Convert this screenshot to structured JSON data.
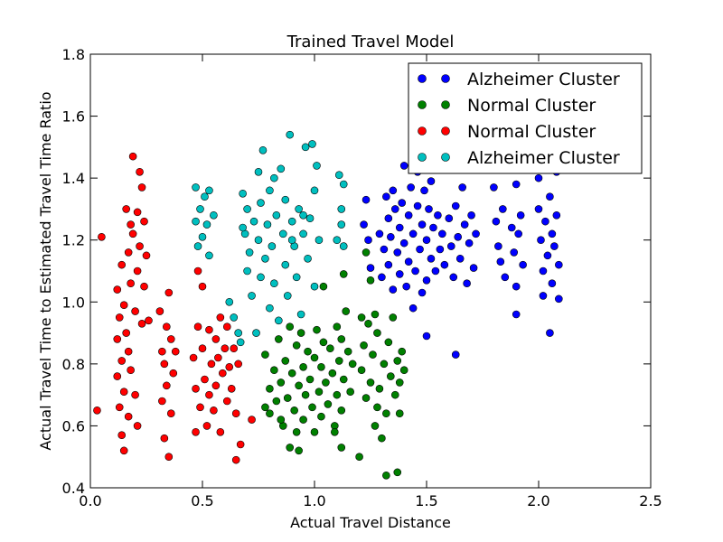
{
  "chart_data": {
    "type": "scatter",
    "title": "Trained Travel Model",
    "xlabel": "Actual Travel Distance",
    "ylabel": "Actual Travel Time to Estimated Travel Time Ratio",
    "xlim": [
      0.0,
      2.5
    ],
    "ylim": [
      0.4,
      1.8
    ],
    "xticks": [
      "0.0",
      "0.5",
      "1.0",
      "1.5",
      "2.0",
      "2.5"
    ],
    "yticks": [
      "0.4",
      "0.6",
      "0.8",
      "1.0",
      "1.2",
      "1.4",
      "1.6",
      "1.8"
    ],
    "grid": false,
    "legend_position": "top-right",
    "series": [
      {
        "name": "Alzheimer Cluster",
        "color": "#0000ff",
        "points": [
          [
            1.22,
            1.25
          ],
          [
            1.23,
            1.33
          ],
          [
            1.24,
            1.2
          ],
          [
            1.25,
            1.11
          ],
          [
            1.29,
            1.22
          ],
          [
            1.3,
            1.08
          ],
          [
            1.31,
            1.17
          ],
          [
            1.32,
            1.34
          ],
          [
            1.33,
            1.27
          ],
          [
            1.33,
            1.12
          ],
          [
            1.34,
            1.21
          ],
          [
            1.35,
            1.36
          ],
          [
            1.35,
            1.04
          ],
          [
            1.36,
            1.3
          ],
          [
            1.37,
            1.16
          ],
          [
            1.38,
            1.24
          ],
          [
            1.38,
            1.09
          ],
          [
            1.39,
            1.32
          ],
          [
            1.4,
            1.44
          ],
          [
            1.4,
            1.19
          ],
          [
            1.41,
            1.05
          ],
          [
            1.42,
            1.28
          ],
          [
            1.42,
            1.13
          ],
          [
            1.43,
            1.37
          ],
          [
            1.44,
            1.22
          ],
          [
            1.44,
            0.98
          ],
          [
            1.45,
            1.1
          ],
          [
            1.46,
            1.42
          ],
          [
            1.46,
            1.31
          ],
          [
            1.47,
            1.17
          ],
          [
            1.48,
            1.25
          ],
          [
            1.48,
            1.03
          ],
          [
            1.49,
            1.36
          ],
          [
            1.5,
            1.2
          ],
          [
            1.5,
            1.07
          ],
          [
            1.51,
            1.3
          ],
          [
            1.52,
            1.14
          ],
          [
            1.52,
            1.39
          ],
          [
            1.53,
            1.24
          ],
          [
            1.54,
            1.1
          ],
          [
            1.55,
            1.47
          ],
          [
            1.55,
            1.28
          ],
          [
            1.56,
            1.17
          ],
          [
            1.57,
            1.22
          ],
          [
            1.58,
            1.12
          ],
          [
            1.6,
            1.27
          ],
          [
            1.61,
            1.18
          ],
          [
            1.62,
            1.08
          ],
          [
            1.63,
            1.31
          ],
          [
            1.64,
            1.21
          ],
          [
            1.65,
            1.14
          ],
          [
            1.66,
            1.37
          ],
          [
            1.67,
            1.25
          ],
          [
            1.68,
            1.06
          ],
          [
            1.69,
            1.19
          ],
          [
            1.7,
            1.28
          ],
          [
            1.71,
            1.11
          ],
          [
            1.72,
            1.22
          ],
          [
            1.5,
            0.89
          ],
          [
            1.63,
            0.83
          ],
          [
            1.8,
            1.37
          ],
          [
            1.81,
            1.26
          ],
          [
            1.82,
            1.18
          ],
          [
            1.83,
            1.13
          ],
          [
            1.84,
            1.3
          ],
          [
            1.85,
            1.08
          ],
          [
            1.88,
            1.24
          ],
          [
            1.89,
            1.16
          ],
          [
            1.9,
            1.05
          ],
          [
            1.9,
            1.38
          ],
          [
            1.91,
            1.22
          ],
          [
            1.92,
            1.28
          ],
          [
            1.93,
            1.12
          ],
          [
            1.9,
            0.96
          ],
          [
            2.0,
            1.4
          ],
          [
            2.0,
            1.3
          ],
          [
            2.01,
            1.2
          ],
          [
            2.02,
            1.1
          ],
          [
            2.02,
            1.02
          ],
          [
            2.03,
            1.26
          ],
          [
            2.04,
            1.15
          ],
          [
            2.05,
            1.34
          ],
          [
            2.06,
            1.22
          ],
          [
            2.06,
            1.06
          ],
          [
            2.07,
            1.18
          ],
          [
            2.08,
            1.42
          ],
          [
            2.08,
            1.28
          ],
          [
            2.09,
            1.12
          ],
          [
            2.05,
            0.9
          ],
          [
            2.09,
            1.01
          ]
        ]
      },
      {
        "name": "Normal Cluster",
        "color": "#008000",
        "points": [
          [
            0.78,
            0.83
          ],
          [
            0.8,
            0.72
          ],
          [
            0.8,
            0.64
          ],
          [
            0.82,
            0.78
          ],
          [
            0.83,
            0.68
          ],
          [
            0.84,
            0.88
          ],
          [
            0.85,
            0.74
          ],
          [
            0.86,
            0.6
          ],
          [
            0.87,
            0.81
          ],
          [
            0.88,
            0.69
          ],
          [
            0.89,
            0.92
          ],
          [
            0.89,
            0.53
          ],
          [
            0.9,
            0.77
          ],
          [
            0.91,
            0.65
          ],
          [
            0.92,
            0.86
          ],
          [
            0.92,
            0.58
          ],
          [
            0.93,
            0.73
          ],
          [
            0.94,
            0.9
          ],
          [
            0.95,
            0.79
          ],
          [
            0.95,
            0.62
          ],
          [
            0.96,
            0.7
          ],
          [
            0.97,
            0.84
          ],
          [
            0.98,
            0.75
          ],
          [
            0.99,
            0.66
          ],
          [
            1.0,
            0.82
          ],
          [
            1.0,
            0.58
          ],
          [
            1.01,
            0.91
          ],
          [
            1.02,
            0.71
          ],
          [
            1.03,
            0.79
          ],
          [
            1.03,
            0.63
          ],
          [
            1.04,
            0.87
          ],
          [
            1.04,
            1.05
          ],
          [
            1.05,
            0.74
          ],
          [
            1.06,
            0.67
          ],
          [
            1.07,
            0.85
          ],
          [
            1.08,
            0.77
          ],
          [
            1.09,
            0.6
          ],
          [
            1.1,
            0.92
          ],
          [
            1.1,
            0.7
          ],
          [
            1.11,
            0.81
          ],
          [
            1.12,
            0.65
          ],
          [
            1.12,
            0.88
          ],
          [
            1.13,
            0.75
          ],
          [
            1.13,
            1.09
          ],
          [
            1.12,
            0.53
          ],
          [
            1.14,
            0.97
          ],
          [
            1.15,
            0.84
          ],
          [
            1.16,
            0.71
          ],
          [
            1.17,
            0.8
          ],
          [
            1.2,
            0.5
          ],
          [
            1.21,
            0.78
          ],
          [
            1.22,
            0.86
          ],
          [
            1.23,
            0.69
          ],
          [
            1.23,
            1.16
          ],
          [
            1.24,
            0.93
          ],
          [
            1.25,
            0.74
          ],
          [
            1.25,
            1.07
          ],
          [
            1.26,
            0.83
          ],
          [
            1.27,
            0.6
          ],
          [
            1.27,
            0.96
          ],
          [
            1.28,
            0.66
          ],
          [
            1.28,
            0.9
          ],
          [
            1.29,
            0.72
          ],
          [
            1.3,
            0.56
          ],
          [
            1.31,
            0.8
          ],
          [
            1.32,
            0.44
          ],
          [
            1.32,
            0.64
          ],
          [
            1.33,
            0.87
          ],
          [
            1.34,
            0.76
          ],
          [
            1.35,
            0.95
          ],
          [
            1.36,
            0.7
          ],
          [
            1.37,
            0.81
          ],
          [
            1.37,
            0.45
          ],
          [
            1.38,
            0.74
          ],
          [
            1.38,
            0.64
          ],
          [
            1.39,
            0.84
          ],
          [
            1.4,
            0.78
          ],
          [
            0.78,
            0.66
          ],
          [
            0.85,
            0.62
          ],
          [
            0.93,
            0.52
          ],
          [
            1.09,
            0.58
          ],
          [
            1.21,
            0.95
          ]
        ]
      },
      {
        "name": "Normal Cluster",
        "color": "#ff0000",
        "points": [
          [
            0.03,
            0.65
          ],
          [
            0.05,
            1.21
          ],
          [
            0.12,
            1.04
          ],
          [
            0.12,
            0.88
          ],
          [
            0.12,
            0.76
          ],
          [
            0.13,
            0.95
          ],
          [
            0.13,
            0.66
          ],
          [
            0.14,
            1.12
          ],
          [
            0.14,
            0.81
          ],
          [
            0.14,
            0.57
          ],
          [
            0.15,
            0.99
          ],
          [
            0.15,
            0.71
          ],
          [
            0.15,
            0.52
          ],
          [
            0.16,
            1.3
          ],
          [
            0.16,
            0.9
          ],
          [
            0.17,
            1.16
          ],
          [
            0.17,
            0.84
          ],
          [
            0.17,
            0.63
          ],
          [
            0.18,
            1.25
          ],
          [
            0.18,
            1.06
          ],
          [
            0.18,
            0.78
          ],
          [
            0.19,
            1.47
          ],
          [
            0.19,
            1.22
          ],
          [
            0.2,
            0.97
          ],
          [
            0.2,
            0.7
          ],
          [
            0.21,
            1.29
          ],
          [
            0.21,
            1.1
          ],
          [
            0.21,
            0.6
          ],
          [
            0.22,
            1.42
          ],
          [
            0.22,
            1.18
          ],
          [
            0.23,
            0.93
          ],
          [
            0.23,
            1.37
          ],
          [
            0.24,
            1.26
          ],
          [
            0.24,
            1.05
          ],
          [
            0.25,
            1.15
          ],
          [
            0.26,
            0.94
          ],
          [
            0.31,
            0.97
          ],
          [
            0.32,
            0.84
          ],
          [
            0.32,
            0.68
          ],
          [
            0.33,
            0.8
          ],
          [
            0.33,
            0.56
          ],
          [
            0.34,
            0.92
          ],
          [
            0.34,
            0.73
          ],
          [
            0.35,
            1.03
          ],
          [
            0.35,
            0.5
          ],
          [
            0.36,
            0.88
          ],
          [
            0.36,
            0.64
          ],
          [
            0.37,
            0.77
          ],
          [
            0.38,
            0.84
          ],
          [
            0.46,
            0.82
          ],
          [
            0.47,
            0.72
          ],
          [
            0.47,
            0.58
          ],
          [
            0.48,
            1.1
          ],
          [
            0.48,
            0.92
          ],
          [
            0.49,
            0.66
          ],
          [
            0.5,
            0.85
          ],
          [
            0.5,
            1.05
          ],
          [
            0.51,
            0.75
          ],
          [
            0.52,
            0.6
          ],
          [
            0.53,
            0.91
          ],
          [
            0.53,
            0.7
          ],
          [
            0.54,
            0.8
          ],
          [
            0.55,
            0.65
          ],
          [
            0.56,
            0.88
          ],
          [
            0.56,
            0.73
          ],
          [
            0.57,
            0.82
          ],
          [
            0.58,
            0.58
          ],
          [
            0.58,
            0.95
          ],
          [
            0.59,
            0.77
          ],
          [
            0.6,
            0.85
          ],
          [
            0.61,
            0.68
          ],
          [
            0.61,
            0.92
          ],
          [
            0.62,
            0.79
          ],
          [
            0.63,
            0.72
          ],
          [
            0.64,
            0.85
          ],
          [
            0.65,
            0.49
          ],
          [
            0.65,
            0.64
          ],
          [
            0.66,
            0.8
          ],
          [
            0.67,
            0.54
          ],
          [
            0.72,
            0.62
          ]
        ]
      },
      {
        "name": "Alzheimer Cluster",
        "color": "#00bfbf",
        "points": [
          [
            0.47,
            1.37
          ],
          [
            0.47,
            1.26
          ],
          [
            0.48,
            1.18
          ],
          [
            0.49,
            1.3
          ],
          [
            0.5,
            1.21
          ],
          [
            0.51,
            1.34
          ],
          [
            0.52,
            1.25
          ],
          [
            0.53,
            1.15
          ],
          [
            0.53,
            1.36
          ],
          [
            0.55,
            1.28
          ],
          [
            0.62,
            1.0
          ],
          [
            0.64,
            0.95
          ],
          [
            0.66,
            0.9
          ],
          [
            0.67,
            0.87
          ],
          [
            0.68,
            1.35
          ],
          [
            0.69,
            1.22
          ],
          [
            0.7,
            1.1
          ],
          [
            0.7,
            1.3
          ],
          [
            0.71,
            1.16
          ],
          [
            0.72,
            1.02
          ],
          [
            0.73,
            1.26
          ],
          [
            0.74,
            0.9
          ],
          [
            0.75,
            1.42
          ],
          [
            0.75,
            1.2
          ],
          [
            0.76,
            1.08
          ],
          [
            0.76,
            1.32
          ],
          [
            0.77,
            1.49
          ],
          [
            0.78,
            1.14
          ],
          [
            0.79,
            1.25
          ],
          [
            0.8,
            1.36
          ],
          [
            0.8,
            0.98
          ],
          [
            0.81,
            1.18
          ],
          [
            0.82,
            1.06
          ],
          [
            0.83,
            1.28
          ],
          [
            0.84,
            0.94
          ],
          [
            0.85,
            1.43
          ],
          [
            0.86,
            1.22
          ],
          [
            0.87,
            1.12
          ],
          [
            0.87,
            1.33
          ],
          [
            0.88,
            1.02
          ],
          [
            0.89,
            1.54
          ],
          [
            0.9,
            1.26
          ],
          [
            0.91,
            1.18
          ],
          [
            0.92,
            1.08
          ],
          [
            0.93,
            1.3
          ],
          [
            0.94,
            0.96
          ],
          [
            0.95,
            1.22
          ],
          [
            0.96,
            1.5
          ],
          [
            0.97,
            1.14
          ],
          [
            0.98,
            1.27
          ],
          [
            0.99,
            1.51
          ],
          [
            1.0,
            1.36
          ],
          [
            1.0,
            1.05
          ],
          [
            1.01,
            1.44
          ],
          [
            1.02,
            1.2
          ],
          [
            1.1,
            1.2
          ],
          [
            1.11,
            1.41
          ],
          [
            1.12,
            1.3
          ],
          [
            1.12,
            1.25
          ],
          [
            1.13,
            1.38
          ],
          [
            1.13,
            1.18
          ],
          [
            0.9,
            1.2
          ],
          [
            0.68,
            1.24
          ],
          [
            0.82,
            1.4
          ],
          [
            0.95,
            1.28
          ]
        ]
      }
    ]
  }
}
